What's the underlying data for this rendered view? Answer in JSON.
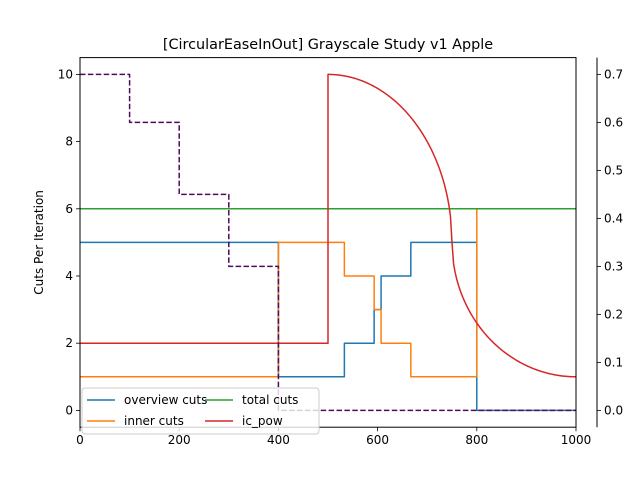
{
  "chart_data": {
    "type": "line",
    "title": "[CircularEaseInOut] Grayscale Study v1 Apple",
    "xlabel": "",
    "ylabel": "Cuts Per Iteration",
    "xlim": [
      0,
      1000
    ],
    "ylim": [
      -0.5,
      10.5
    ],
    "y2lim": [
      -0.035,
      0.735
    ],
    "x_ticks": [
      0,
      200,
      400,
      600,
      800,
      1000
    ],
    "y_ticks": [
      0,
      2,
      4,
      6,
      8,
      10
    ],
    "y2_ticks": [
      0.0,
      0.1,
      0.2,
      0.3,
      0.4,
      0.5,
      0.6,
      0.7
    ],
    "legend_position": "lower-left",
    "legend_columns": 2,
    "grid": false,
    "series": [
      {
        "name": "overview cuts",
        "color": "#1f77b4",
        "axis": "left",
        "step": true,
        "points": [
          [
            0,
            5
          ],
          [
            400,
            5
          ],
          [
            400,
            1
          ],
          [
            533,
            1
          ],
          [
            533,
            2
          ],
          [
            593,
            2
          ],
          [
            593,
            3
          ],
          [
            607,
            3
          ],
          [
            607,
            4
          ],
          [
            667,
            4
          ],
          [
            667,
            5
          ],
          [
            800,
            5
          ],
          [
            800,
            0
          ],
          [
            1000,
            0
          ]
        ]
      },
      {
        "name": "inner cuts",
        "color": "#ff7f0e",
        "axis": "left",
        "step": true,
        "points": [
          [
            0,
            1
          ],
          [
            400,
            1
          ],
          [
            400,
            5
          ],
          [
            533,
            5
          ],
          [
            533,
            4
          ],
          [
            593,
            4
          ],
          [
            593,
            3
          ],
          [
            607,
            3
          ],
          [
            607,
            2
          ],
          [
            667,
            2
          ],
          [
            667,
            1
          ],
          [
            800,
            1
          ],
          [
            800,
            6
          ],
          [
            1000,
            6
          ]
        ]
      },
      {
        "name": "total cuts",
        "color": "#2ca02c",
        "axis": "left",
        "step": true,
        "points": [
          [
            0,
            6
          ],
          [
            1000,
            6
          ]
        ]
      },
      {
        "name": "ic_pow",
        "color": "#d62728",
        "axis": "right",
        "curve": "circular-ease-in-out",
        "segments": [
          {
            "x_start": 0,
            "x_end": 500,
            "y_start": 0.14,
            "y_end": 0.14
          },
          {
            "x_start": 500,
            "x_end": 750,
            "y_start": 0.7,
            "y_end": 0.35,
            "shape": "quarter-circle-down"
          },
          {
            "x_start": 750,
            "x_end": 1000,
            "y_start": 0.35,
            "y_end": 0.07,
            "shape": "quarter-circle-up"
          }
        ],
        "jump_at_x": 500
      },
      {
        "name": "",
        "color": "#4b0d5c",
        "axis": "right",
        "dashed": true,
        "step": true,
        "points": [
          [
            0,
            0.7
          ],
          [
            100,
            0.7
          ],
          [
            100,
            0.6
          ],
          [
            200,
            0.6
          ],
          [
            200,
            0.45
          ],
          [
            300,
            0.45
          ],
          [
            300,
            0.3
          ],
          [
            400,
            0.3
          ],
          [
            400,
            0.0
          ],
          [
            1000,
            0.0
          ]
        ]
      }
    ]
  }
}
